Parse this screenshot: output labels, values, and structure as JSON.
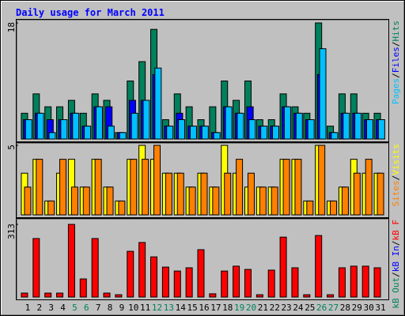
{
  "title": "Daily usage for March 2011",
  "chart_data": [
    {
      "type": "bar",
      "ylim": [
        0,
        18
      ],
      "yticks": [
        18
      ],
      "legend_separator": "/",
      "series": [
        {
          "name": "Hits",
          "color": "#00805c",
          "values": [
            4,
            7,
            5,
            5,
            6,
            4,
            7,
            6,
            1,
            9,
            12,
            17,
            3,
            7,
            5,
            3,
            5,
            9,
            6,
            9,
            3,
            3,
            7,
            5,
            4,
            18,
            2,
            7,
            7,
            4,
            4
          ]
        },
        {
          "name": "Files",
          "color": "#0000ff",
          "values": [
            3,
            4,
            3,
            3,
            4,
            2,
            5,
            5,
            1,
            6,
            6,
            10,
            2,
            4,
            2,
            2,
            1,
            5,
            4,
            5,
            2,
            2,
            5,
            4,
            3,
            10,
            1,
            4,
            4,
            3,
            3
          ]
        },
        {
          "name": "Pages",
          "color": "#00c0ff",
          "values": [
            3,
            4,
            1,
            3,
            4,
            2,
            5,
            2,
            1,
            4,
            6,
            11,
            2,
            3,
            2,
            2,
            1,
            5,
            4,
            3,
            2,
            2,
            5,
            4,
            3,
            14,
            1,
            4,
            4,
            3,
            3
          ]
        }
      ]
    },
    {
      "type": "bar",
      "ylim": [
        0,
        5
      ],
      "yticks": [
        5
      ],
      "legend_separator": "/",
      "series": [
        {
          "name": "Visits",
          "color": "#ffff00",
          "values": [
            3,
            4,
            1,
            3,
            4,
            2,
            4,
            2,
            1,
            4,
            5,
            4,
            3,
            3,
            2,
            3,
            2,
            5,
            3,
            2,
            2,
            2,
            4,
            4,
            1,
            5,
            1,
            2,
            4,
            3,
            3
          ]
        },
        {
          "name": "Sites",
          "color": "#ff8000",
          "values": [
            2,
            4,
            1,
            4,
            2,
            2,
            4,
            2,
            1,
            4,
            4,
            5,
            3,
            3,
            2,
            3,
            2,
            3,
            4,
            3,
            2,
            2,
            4,
            4,
            1,
            5,
            1,
            2,
            3,
            4,
            3
          ]
        }
      ]
    },
    {
      "type": "bar",
      "ylim": [
        0,
        313
      ],
      "yticks": [
        313
      ],
      "legend_separator": "/",
      "categories": [
        "1",
        "2",
        "3",
        "4",
        "5",
        "6",
        "7",
        "8",
        "9",
        "10",
        "11",
        "12",
        "13",
        "14",
        "15",
        "16",
        "17",
        "18",
        "19",
        "20",
        "21",
        "22",
        "23",
        "24",
        "25",
        "26",
        "27",
        "28",
        "29",
        "30",
        "31"
      ],
      "highlight_indices": [
        4,
        5,
        11,
        12,
        18,
        19,
        25,
        26
      ],
      "highlight_color": "#00805c",
      "series": [
        {
          "name": "kB F",
          "color": "#ff0000",
          "values": [
            17,
            252,
            17,
            17,
            313,
            78,
            252,
            17,
            10,
            197,
            235,
            173,
            129,
            112,
            126,
            204,
            14,
            112,
            133,
            119,
            10,
            116,
            258,
            126,
            10,
            265,
            10,
            126,
            133,
            133,
            126
          ]
        },
        {
          "name": "kB In",
          "color": "#0000ff",
          "values": [
            null,
            null,
            null,
            null,
            null,
            null,
            null,
            null,
            null,
            null,
            null,
            null,
            null,
            null,
            null,
            null,
            null,
            null,
            null,
            null,
            null,
            null,
            null,
            null,
            null,
            null,
            null,
            null,
            null,
            null,
            null
          ]
        },
        {
          "name": "kB Out",
          "color": "#00805c",
          "values": [
            null,
            null,
            null,
            null,
            null,
            null,
            null,
            null,
            null,
            null,
            null,
            null,
            null,
            null,
            null,
            null,
            null,
            null,
            null,
            null,
            null,
            null,
            null,
            null,
            null,
            null,
            null,
            null,
            null,
            null,
            null
          ]
        }
      ]
    }
  ]
}
